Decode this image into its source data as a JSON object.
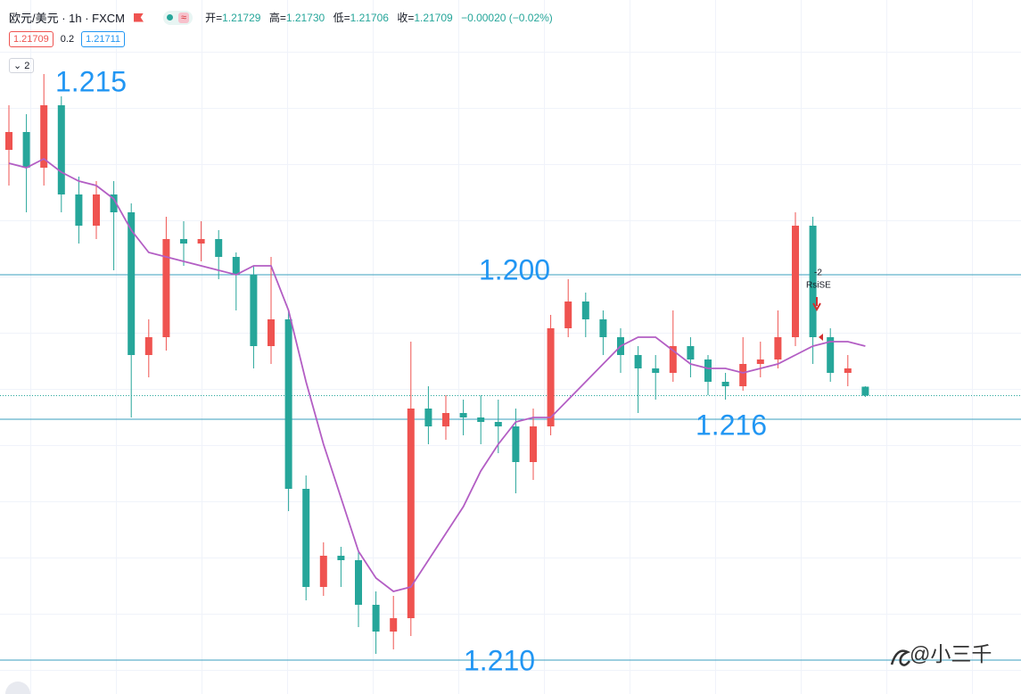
{
  "header": {
    "symbol": "欧元/美元 · 1h · FXCM",
    "ohlc": [
      {
        "label": "开=",
        "value": "1.21729"
      },
      {
        "label": "高=",
        "value": "1.21730"
      },
      {
        "label": "低=",
        "value": "1.21706"
      },
      {
        "label": "收=",
        "value": "1.21709"
      }
    ],
    "change": "−0.00020 (−0.02%)",
    "bid": "1.21709",
    "spread": "0.2",
    "ask": "1.21711",
    "collapse": "2"
  },
  "chart_data": {
    "type": "candlestick",
    "up_color": "#ef5350",
    "down_color": "#26a69a",
    "ylim": [
      1.2104,
      1.2254
    ],
    "categories": [
      null,
      null,
      null,
      null,
      null,
      null,
      null,
      null,
      null,
      null,
      null,
      null,
      null,
      null,
      null,
      null,
      null,
      null,
      null,
      null,
      null,
      null,
      null,
      null,
      null,
      null,
      null,
      null,
      null,
      null,
      null,
      null,
      null,
      null,
      null,
      null,
      null,
      null,
      null,
      null,
      null,
      null,
      null,
      null,
      null,
      null,
      null,
      null,
      null,
      null
    ],
    "open": [
      1.2226,
      1.223,
      1.2222,
      1.2236,
      1.2216,
      1.2209,
      1.2216,
      1.2212,
      1.218,
      1.2184,
      1.2206,
      1.2205,
      1.2206,
      1.2202,
      1.2198,
      1.2182,
      1.2188,
      1.215,
      1.2128,
      1.2135,
      1.2134,
      1.2124,
      1.2118,
      1.2121,
      1.2168,
      1.2164,
      1.2167,
      1.2166,
      1.2165,
      1.2164,
      1.2156,
      1.2164,
      1.2186,
      1.2192,
      1.2188,
      1.2184,
      1.218,
      1.2177,
      1.2176,
      1.2182,
      1.2179,
      1.2174,
      1.2173,
      1.2178,
      1.2179,
      1.2184,
      1.2209,
      1.2184,
      1.2176,
      1.21729
    ],
    "high": [
      1.2236,
      1.2234,
      1.2243,
      1.2238,
      1.222,
      1.2219,
      1.2219,
      1.2214,
      1.2188,
      1.2211,
      1.221,
      1.221,
      1.2208,
      1.2203,
      1.22,
      1.2202,
      1.219,
      1.2153,
      1.2138,
      1.2137,
      1.2136,
      1.2127,
      1.2126,
      1.2183,
      1.2173,
      1.2171,
      1.217,
      1.2171,
      1.217,
      1.2168,
      1.2168,
      1.2189,
      1.2197,
      1.2194,
      1.219,
      1.2186,
      1.2182,
      1.218,
      1.219,
      1.2184,
      1.218,
      1.2176,
      1.2184,
      1.2183,
      1.219,
      1.2212,
      1.2211,
      1.2186,
      1.218,
      1.2173
    ],
    "low": [
      1.2218,
      1.2212,
      1.2218,
      1.2212,
      1.2205,
      1.2206,
      1.2199,
      1.2166,
      1.2175,
      1.2181,
      1.22,
      1.2201,
      1.2197,
      1.219,
      1.2177,
      1.2178,
      1.2145,
      1.2125,
      1.2126,
      1.2128,
      1.2119,
      1.2113,
      1.2114,
      1.2117,
      1.216,
      1.2161,
      1.2162,
      1.216,
      1.2158,
      1.2149,
      1.2152,
      1.2162,
      1.2184,
      1.2184,
      1.218,
      1.2176,
      1.2167,
      1.217,
      1.2174,
      1.2175,
      1.2171,
      1.217,
      1.2172,
      1.2175,
      1.2177,
      1.2182,
      1.2178,
      1.2174,
      1.2173,
      1.21706
    ],
    "close": [
      1.223,
      1.2222,
      1.2236,
      1.2216,
      1.2209,
      1.2216,
      1.2212,
      1.218,
      1.2184,
      1.2206,
      1.2205,
      1.2206,
      1.2202,
      1.2198,
      1.2182,
      1.2188,
      1.215,
      1.2128,
      1.2135,
      1.2134,
      1.2124,
      1.2118,
      1.2121,
      1.2168,
      1.2164,
      1.2167,
      1.2166,
      1.2165,
      1.2164,
      1.2156,
      1.2164,
      1.2186,
      1.2192,
      1.2188,
      1.2184,
      1.218,
      1.2177,
      1.2176,
      1.2182,
      1.2179,
      1.2174,
      1.2173,
      1.2178,
      1.2179,
      1.2184,
      1.2209,
      1.2184,
      1.2176,
      1.2177,
      1.21709
    ],
    "ma": {
      "color": "#b35ec4",
      "values": [
        1.2223,
        1.2222,
        1.2224,
        1.2221,
        1.2219,
        1.2218,
        1.2215,
        1.2208,
        1.2203,
        1.2202,
        1.2201,
        1.22,
        1.2199,
        1.2198,
        1.22,
        1.22,
        1.219,
        1.2174,
        1.216,
        1.2148,
        1.2136,
        1.213,
        1.2127,
        1.2128,
        1.2134,
        1.214,
        1.2146,
        1.2154,
        1.216,
        1.2165,
        1.2166,
        1.2166,
        1.217,
        1.2174,
        1.2178,
        1.2182,
        1.2184,
        1.2184,
        1.2181,
        1.2178,
        1.2177,
        1.2177,
        1.2176,
        1.2177,
        1.2178,
        1.218,
        1.2182,
        1.2183,
        1.2183,
        1.2182
      ]
    },
    "hlines": {
      "color": "#3a9fbf",
      "values": [
        1.2198,
        1.21656,
        1.21116
      ]
    },
    "last_line_color": "#26a69a",
    "annotations": [
      "1.215",
      "1.200",
      "1.216",
      "1.210"
    ],
    "signal": {
      "quantity": -2,
      "text": "RsiSE"
    },
    "watermark": "@小三千"
  }
}
